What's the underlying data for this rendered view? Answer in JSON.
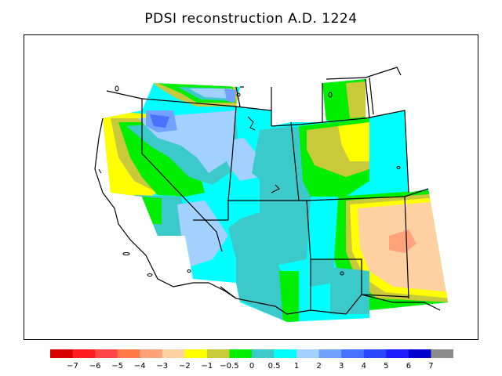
{
  "title": "PDSI reconstruction A.D. 1224",
  "legend": {
    "colors": [
      "#d90000",
      "#ff1c1c",
      "#ff4646",
      "#ff7a46",
      "#ffa27a",
      "#ffd0a2",
      "#ffff00",
      "#c9c93c",
      "#00ee00",
      "#3cc9c9",
      "#00ffff",
      "#a2d0ff",
      "#72a2ff",
      "#4672ff",
      "#2a46ff",
      "#1c1cff",
      "#0000d0",
      "#8c8c8c"
    ],
    "labels": [
      "−7",
      "−6",
      "−5",
      "−4",
      "−3",
      "−2",
      "−1",
      "−0.5",
      "0",
      "0.5",
      "1",
      "2",
      "3",
      "4",
      "5",
      "6",
      "7"
    ]
  }
}
